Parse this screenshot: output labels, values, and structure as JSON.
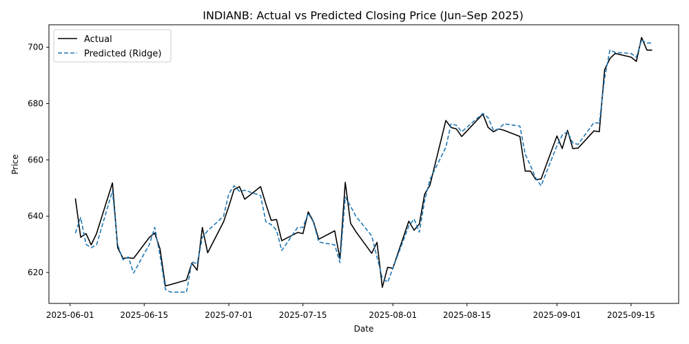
{
  "chart_data": {
    "type": "line",
    "title": "INDIANB: Actual vs Predicted Closing Price (Jun–Sep 2025)",
    "xlabel": "Date",
    "ylabel": "Price",
    "x_ticks": [
      "2025-06-01",
      "2025-06-15",
      "2025-07-01",
      "2025-07-15",
      "2025-08-01",
      "2025-08-15",
      "2025-09-01",
      "2025-09-15"
    ],
    "y_ticks": [
      620,
      640,
      660,
      680,
      700
    ],
    "xlim": [
      "2025-05-28",
      "2025-09-24"
    ],
    "ylim": [
      609,
      708
    ],
    "grid": false,
    "legend": "top-left",
    "x": [
      "2025-06-02",
      "2025-06-03",
      "2025-06-04",
      "2025-06-05",
      "2025-06-06",
      "2025-06-09",
      "2025-06-10",
      "2025-06-11",
      "2025-06-12",
      "2025-06-13",
      "2025-06-16",
      "2025-06-17",
      "2025-06-18",
      "2025-06-19",
      "2025-06-20",
      "2025-06-23",
      "2025-06-24",
      "2025-06-25",
      "2025-06-26",
      "2025-06-27",
      "2025-06-30",
      "2025-07-01",
      "2025-07-02",
      "2025-07-03",
      "2025-07-04",
      "2025-07-07",
      "2025-07-08",
      "2025-07-09",
      "2025-07-10",
      "2025-07-11",
      "2025-07-14",
      "2025-07-15",
      "2025-07-16",
      "2025-07-17",
      "2025-07-18",
      "2025-07-21",
      "2025-07-22",
      "2025-07-23",
      "2025-07-24",
      "2025-07-25",
      "2025-07-28",
      "2025-07-29",
      "2025-07-30",
      "2025-07-31",
      "2025-08-01",
      "2025-08-04",
      "2025-08-05",
      "2025-08-06",
      "2025-08-07",
      "2025-08-08",
      "2025-08-11",
      "2025-08-12",
      "2025-08-13",
      "2025-08-14",
      "2025-08-18",
      "2025-08-19",
      "2025-08-20",
      "2025-08-21",
      "2025-08-22",
      "2025-08-25",
      "2025-08-26",
      "2025-08-27",
      "2025-08-28",
      "2025-08-29",
      "2025-09-01",
      "2025-09-02",
      "2025-09-03",
      "2025-09-04",
      "2025-09-05",
      "2025-09-08",
      "2025-09-09",
      "2025-09-10",
      "2025-09-11",
      "2025-09-12",
      "2025-09-15",
      "2025-09-16",
      "2025-09-17",
      "2025-09-18",
      "2025-09-19"
    ],
    "series": [
      {
        "name": "Actual",
        "color": "#000000",
        "style": "solid",
        "values": [
          646.3,
          632.5,
          633.8,
          629.8,
          633.8,
          651.8,
          628.8,
          625.0,
          625.2,
          625.0,
          632.5,
          634.0,
          628.3,
          615.2,
          615.7,
          617.3,
          623.3,
          620.8,
          636.0,
          627.0,
          638.0,
          643.5,
          649.5,
          650.5,
          646.0,
          650.5,
          644.3,
          638.5,
          638.8,
          631.3,
          634.2,
          633.8,
          641.5,
          638.0,
          631.8,
          634.8,
          624.8,
          652.0,
          637.5,
          634.5,
          626.8,
          630.7,
          614.7,
          621.8,
          621.5,
          638.2,
          635.0,
          637.2,
          647.8,
          651.0,
          674.0,
          671.5,
          671.0,
          668.3,
          676.3,
          671.5,
          670.0,
          671.0,
          670.5,
          668.3,
          656.0,
          656.0,
          653.0,
          653.2,
          668.5,
          664.0,
          670.5,
          664.0,
          664.2,
          670.3,
          670.0,
          692.0,
          696.0,
          697.8,
          696.5,
          695.0,
          703.5,
          699.0,
          699.0
        ]
      },
      {
        "name": "Predicted (Ridge)",
        "color": "#1f77b4",
        "style": "dashed",
        "values": [
          634.0,
          639.5,
          630.0,
          628.8,
          629.8,
          649.0,
          629.8,
          624.5,
          625.5,
          619.8,
          630.0,
          636.0,
          626.0,
          614.0,
          613.0,
          613.0,
          623.8,
          623.0,
          632.5,
          634.8,
          640.0,
          648.0,
          650.8,
          648.8,
          649.2,
          647.3,
          638.0,
          637.0,
          635.0,
          627.8,
          636.0,
          636.0,
          641.0,
          637.8,
          630.8,
          629.8,
          623.5,
          646.8,
          643.5,
          640.0,
          633.0,
          625.5,
          618.0,
          616.5,
          621.5,
          636.5,
          639.0,
          634.3,
          645.5,
          653.0,
          664.5,
          672.8,
          672.3,
          670.0,
          676.5,
          675.0,
          670.5,
          671.0,
          672.8,
          672.0,
          662.0,
          658.0,
          653.5,
          650.8,
          665.0,
          668.8,
          670.0,
          666.0,
          665.5,
          673.3,
          673.0,
          689.0,
          699.0,
          698.2,
          697.8,
          696.5,
          702.5,
          701.5,
          701.5
        ]
      }
    ]
  }
}
